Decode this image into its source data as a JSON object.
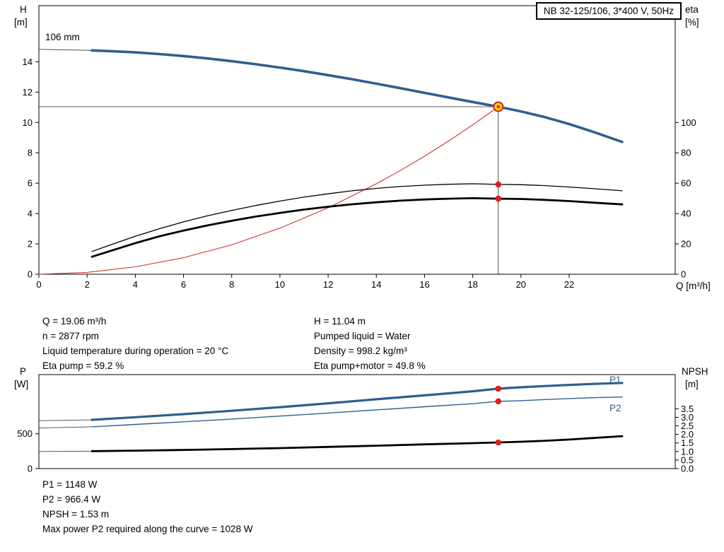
{
  "title_box": {
    "text": "NB 32-125/106, 3*400 V, 50Hz"
  },
  "labels": {
    "impeller": "106 mm",
    "h_axis": "H",
    "h_unit": "[m]",
    "eta_axis": "eta",
    "eta_unit": "[%]",
    "q_axis": "Q [m³/h]",
    "p_axis": "P",
    "p_unit": "[W]",
    "npsh_axis": "NPSH",
    "npsh_unit": "[m]",
    "p1": "P1",
    "p2": "P2"
  },
  "info_top": {
    "left": [
      "Q = 19.06 m³/h",
      "n = 2877 rpm",
      "Liquid temperature during operation = 20 °C",
      "Eta pump = 59.2 %"
    ],
    "right": [
      "H = 11.04 m",
      "Pumped liquid = Water",
      "Density = 998.2 kg/m³",
      "Eta pump+motor = 49.8 %"
    ]
  },
  "info_bottom": [
    "P1 = 1148 W",
    "P2 = 966.4 W",
    "NPSH = 1.53 m",
    "Max power P2 required along the curve = 1028 W"
  ],
  "colors": {
    "curve_blue": "#2e5f8f",
    "curve_black": "#000000",
    "system_red": "#cc3333",
    "connector_gray": "#444444",
    "duty_fill": "#ffd400",
    "duty_ring": "#d42020",
    "marker_red": "#e01e1e"
  },
  "duty_point": {
    "q": 19.06,
    "h": 11.04,
    "eta_pump": 59.2,
    "eta_total": 49.8,
    "p1": 1148,
    "p2": 966.4,
    "npsh": 1.53
  },
  "chart_data": [
    {
      "type": "line",
      "name": "performance",
      "title": "NB 32-125/106, 3*400 V, 50Hz — QH, system and efficiency curves",
      "x_axis": {
        "label": "Q [m³/h]",
        "min": 0,
        "max": 26.4,
        "tick_values": [
          0,
          2,
          4,
          6,
          8,
          10,
          12,
          14,
          16,
          18,
          20,
          22
        ],
        "tick_labels": [
          "0",
          "2",
          "4",
          "6",
          "8",
          "10",
          "12",
          "14",
          "16",
          "18",
          "20",
          "22"
        ]
      },
      "y_left": {
        "label": "H [m]",
        "min": 0,
        "max": 17.7,
        "tick_values": [
          0,
          2,
          4,
          6,
          8,
          10,
          12,
          14
        ],
        "tick_labels": [
          "0",
          "2",
          "4",
          "6",
          "8",
          "10",
          "12",
          "14"
        ]
      },
      "y_right": {
        "label": "eta [%]",
        "min": 0,
        "max": 177,
        "tick_values": [
          0,
          20,
          40,
          60,
          80,
          100
        ],
        "tick_labels": [
          "0",
          "20",
          "40",
          "60",
          "80",
          "100"
        ]
      },
      "crosshair": {
        "x": 19.06,
        "y": 11.04
      },
      "series": [
        {
          "name": "qh-axis-connector",
          "axis": "left",
          "color": "#444444",
          "width": 0.9,
          "points": [
            [
              0,
              14.82
            ],
            [
              2.2,
              14.75
            ]
          ]
        },
        {
          "name": "system-curve",
          "axis": "left",
          "color": "#cc3333",
          "width": 1.1,
          "points": [
            [
              0,
              0
            ],
            [
              2,
              0.12
            ],
            [
              4,
              0.49
            ],
            [
              6,
              1.09
            ],
            [
              8,
              1.94
            ],
            [
              10,
              3.04
            ],
            [
              12,
              4.38
            ],
            [
              14,
              5.96
            ],
            [
              15,
              6.84
            ],
            [
              16,
              7.78
            ],
            [
              17,
              8.78
            ],
            [
              18,
              9.84
            ],
            [
              19.06,
              11.04
            ]
          ]
        },
        {
          "name": "qh-curve",
          "axis": "left",
          "color": "#2e5f8f",
          "width": 3.6,
          "points": [
            [
              2.2,
              14.75
            ],
            [
              3,
              14.7
            ],
            [
              4,
              14.62
            ],
            [
              5,
              14.51
            ],
            [
              6,
              14.38
            ],
            [
              7,
              14.22
            ],
            [
              8,
              14.04
            ],
            [
              9,
              13.84
            ],
            [
              10,
              13.62
            ],
            [
              11,
              13.38
            ],
            [
              12,
              13.12
            ],
            [
              13,
              12.85
            ],
            [
              14,
              12.56
            ],
            [
              15,
              12.26
            ],
            [
              16,
              11.95
            ],
            [
              17,
              11.65
            ],
            [
              18,
              11.35
            ],
            [
              19.06,
              11.04
            ],
            [
              20,
              10.73
            ],
            [
              21,
              10.35
            ],
            [
              22,
              9.9
            ],
            [
              23,
              9.38
            ],
            [
              24.2,
              8.72
            ]
          ]
        },
        {
          "name": "eta-pump-curve",
          "axis": "right",
          "color": "#000000",
          "width": 1.3,
          "points": [
            [
              2.2,
              15
            ],
            [
              3,
              19.5
            ],
            [
              4,
              25
            ],
            [
              5,
              30
            ],
            [
              6,
              34.5
            ],
            [
              7,
              38.5
            ],
            [
              8,
              42
            ],
            [
              9,
              45.3
            ],
            [
              10,
              48.2
            ],
            [
              11,
              50.8
            ],
            [
              12,
              53
            ],
            [
              13,
              55
            ],
            [
              14,
              56.6
            ],
            [
              15,
              57.8
            ],
            [
              16,
              58.7
            ],
            [
              17,
              59.3
            ],
            [
              18,
              59.6
            ],
            [
              19.06,
              59.2
            ],
            [
              20,
              59
            ],
            [
              21,
              58.4
            ],
            [
              22,
              57.5
            ],
            [
              23,
              56.4
            ],
            [
              24.2,
              55
            ]
          ]
        },
        {
          "name": "eta-pump-motor-curve",
          "axis": "right",
          "color": "#000000",
          "width": 2.8,
          "points": [
            [
              2.2,
              11.5
            ],
            [
              3,
              15.5
            ],
            [
              4,
              20.5
            ],
            [
              5,
              25
            ],
            [
              6,
              28.8
            ],
            [
              7,
              32.2
            ],
            [
              8,
              35.2
            ],
            [
              9,
              38
            ],
            [
              10,
              40.4
            ],
            [
              11,
              42.6
            ],
            [
              12,
              44.5
            ],
            [
              13,
              46.1
            ],
            [
              14,
              47.4
            ],
            [
              15,
              48.5
            ],
            [
              16,
              49.3
            ],
            [
              17,
              49.8
            ],
            [
              18,
              50.1
            ],
            [
              19.06,
              49.8
            ],
            [
              20,
              49.6
            ],
            [
              21,
              49
            ],
            [
              22,
              48.2
            ],
            [
              23,
              47.2
            ],
            [
              24.2,
              46
            ]
          ]
        }
      ],
      "markers": [
        {
          "name": "eta-pump-dot",
          "x": 19.06,
          "value": 59.2,
          "axis": "right",
          "style": "dot"
        },
        {
          "name": "eta-total-dot",
          "x": 19.06,
          "value": 49.8,
          "axis": "right",
          "style": "dot"
        },
        {
          "name": "duty-point",
          "x": 19.06,
          "value": 11.04,
          "axis": "left",
          "style": "duty"
        }
      ]
    },
    {
      "type": "line",
      "name": "power",
      "title": "Power P1/P2 and NPSH curves",
      "x_axis": {
        "label": "",
        "min": 0,
        "max": 26.4,
        "tick_values": [],
        "tick_labels": []
      },
      "y_left": {
        "label": "P [W]",
        "min": 0,
        "max": 1350,
        "tick_values": [
          0,
          500
        ],
        "tick_labels": [
          "0",
          "500"
        ]
      },
      "y_right": {
        "label": "NPSH [m]",
        "min": 0,
        "max": 5.5,
        "tick_values": [
          0,
          0.5,
          1,
          1.5,
          2,
          2.5,
          3,
          3.5
        ],
        "tick_labels": [
          "0.0",
          "0.5",
          "1.0",
          "1.5",
          "2.0",
          "2.5",
          "3.0",
          "3.5"
        ]
      },
      "series": [
        {
          "name": "p1-axis-connector",
          "axis": "left",
          "color": "#444444",
          "width": 0.9,
          "points": [
            [
              0,
              688
            ],
            [
              2.2,
              700
            ]
          ]
        },
        {
          "name": "p2-axis-connector",
          "axis": "left",
          "color": "#444444",
          "width": 0.9,
          "points": [
            [
              0,
              583
            ],
            [
              2.2,
              600
            ]
          ]
        },
        {
          "name": "npsh-axis-connector",
          "axis": "right",
          "color": "#444444",
          "width": 0.9,
          "points": [
            [
              0,
              1.0
            ],
            [
              2.2,
              1.02
            ]
          ]
        },
        {
          "name": "p2-curve",
          "axis": "left",
          "color": "#2e5f8f",
          "width": 1.4,
          "points": [
            [
              2.2,
              600
            ],
            [
              4,
              634
            ],
            [
              6,
              672
            ],
            [
              8,
              712
            ],
            [
              10,
              754
            ],
            [
              12,
              798
            ],
            [
              14,
              844
            ],
            [
              16,
              888
            ],
            [
              18,
              932
            ],
            [
              19.06,
              966.4
            ],
            [
              20,
              975
            ],
            [
              21,
              992
            ],
            [
              22,
              1006
            ],
            [
              23,
              1018
            ],
            [
              24.2,
              1028
            ]
          ]
        },
        {
          "name": "p1-curve",
          "axis": "left",
          "color": "#2e5f8f",
          "width": 3.2,
          "points": [
            [
              2.2,
              700
            ],
            [
              4,
              738
            ],
            [
              6,
              782
            ],
            [
              8,
              830
            ],
            [
              10,
              882
            ],
            [
              12,
              938
            ],
            [
              14,
              996
            ],
            [
              16,
              1052
            ],
            [
              18,
              1110
            ],
            [
              19.06,
              1148
            ],
            [
              20,
              1168
            ],
            [
              21,
              1186
            ],
            [
              22,
              1202
            ],
            [
              23,
              1216
            ],
            [
              24.2,
              1230
            ]
          ]
        },
        {
          "name": "npsh-curve",
          "axis": "right",
          "color": "#000000",
          "width": 2.8,
          "points": [
            [
              2.2,
              1.02
            ],
            [
              4,
              1.05
            ],
            [
              6,
              1.09
            ],
            [
              8,
              1.14
            ],
            [
              10,
              1.2
            ],
            [
              12,
              1.27
            ],
            [
              14,
              1.34
            ],
            [
              16,
              1.42
            ],
            [
              18,
              1.49
            ],
            [
              19.06,
              1.53
            ],
            [
              20,
              1.57
            ],
            [
              21,
              1.63
            ],
            [
              22,
              1.7
            ],
            [
              23,
              1.79
            ],
            [
              24.2,
              1.9
            ]
          ]
        }
      ],
      "markers": [
        {
          "name": "p1-dot",
          "x": 19.06,
          "value": 1148,
          "axis": "left",
          "style": "dot"
        },
        {
          "name": "p2-dot",
          "x": 19.06,
          "value": 966.4,
          "axis": "left",
          "style": "dot"
        },
        {
          "name": "npsh-dot",
          "x": 19.06,
          "value": 1.53,
          "axis": "right",
          "style": "dot"
        }
      ]
    }
  ]
}
